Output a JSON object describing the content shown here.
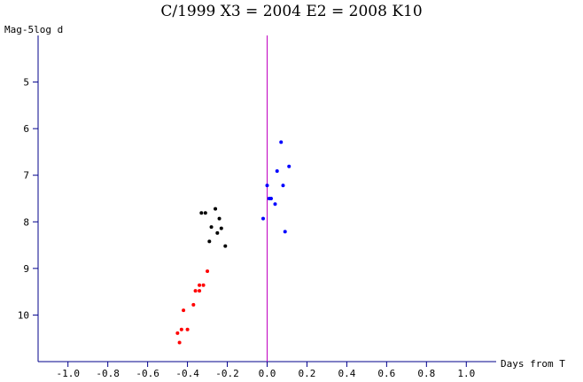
{
  "chart_data": {
    "type": "scatter",
    "title": "C/1999 X3 = 2004 E2 = 2008 K10",
    "ylabel": "Mag-5log d",
    "xlabel": "Days from T",
    "xlim": [
      -1.15,
      1.15
    ],
    "ylim": [
      4.0,
      11.0
    ],
    "y_inverted": true,
    "x_ticks": [
      -1.0,
      -0.8,
      -0.6,
      -0.4,
      -0.2,
      0.0,
      0.2,
      0.4,
      0.6,
      0.8,
      1.0
    ],
    "x_tick_labels": [
      "-1.0",
      "-0.8",
      "-0.6",
      "-0.4",
      "-0.2",
      "0.0",
      "0.2",
      "0.4",
      "0.6",
      "0.8",
      "1.0"
    ],
    "y_ticks": [
      5,
      6,
      7,
      8,
      9,
      10
    ],
    "y_tick_labels": [
      "5",
      "6",
      "7",
      "8",
      "9",
      "10"
    ],
    "reference_line": {
      "x": 0.0,
      "color": "#c000c0"
    },
    "colors": {
      "axis": "#00008b",
      "text": "#000000"
    },
    "series": [
      {
        "color": "#ff0000",
        "points": [
          {
            "x": -0.45,
            "y": 10.39
          },
          {
            "x": -0.44,
            "y": 10.59
          },
          {
            "x": -0.43,
            "y": 10.31
          },
          {
            "x": -0.4,
            "y": 10.31
          },
          {
            "x": -0.42,
            "y": 9.9
          },
          {
            "x": -0.37,
            "y": 9.78
          },
          {
            "x": -0.36,
            "y": 9.48
          },
          {
            "x": -0.34,
            "y": 9.48
          },
          {
            "x": -0.34,
            "y": 9.36
          },
          {
            "x": -0.32,
            "y": 9.36
          },
          {
            "x": -0.3,
            "y": 9.06
          }
        ]
      },
      {
        "color": "#000000",
        "points": [
          {
            "x": -0.33,
            "y": 7.81
          },
          {
            "x": -0.31,
            "y": 7.81
          },
          {
            "x": -0.26,
            "y": 7.72
          },
          {
            "x": -0.24,
            "y": 7.93
          },
          {
            "x": -0.28,
            "y": 8.11
          },
          {
            "x": -0.23,
            "y": 8.14
          },
          {
            "x": -0.25,
            "y": 8.24
          },
          {
            "x": -0.29,
            "y": 8.42
          },
          {
            "x": -0.21,
            "y": 8.52
          }
        ]
      },
      {
        "color": "#0000ff",
        "points": [
          {
            "x": 0.07,
            "y": 6.29
          },
          {
            "x": 0.11,
            "y": 6.81
          },
          {
            "x": 0.05,
            "y": 6.91
          },
          {
            "x": 0.0,
            "y": 7.22
          },
          {
            "x": 0.08,
            "y": 7.22
          },
          {
            "x": 0.01,
            "y": 7.5
          },
          {
            "x": 0.02,
            "y": 7.5
          },
          {
            "x": 0.04,
            "y": 7.62
          },
          {
            "x": -0.02,
            "y": 7.93
          },
          {
            "x": 0.09,
            "y": 8.21
          }
        ]
      }
    ]
  }
}
